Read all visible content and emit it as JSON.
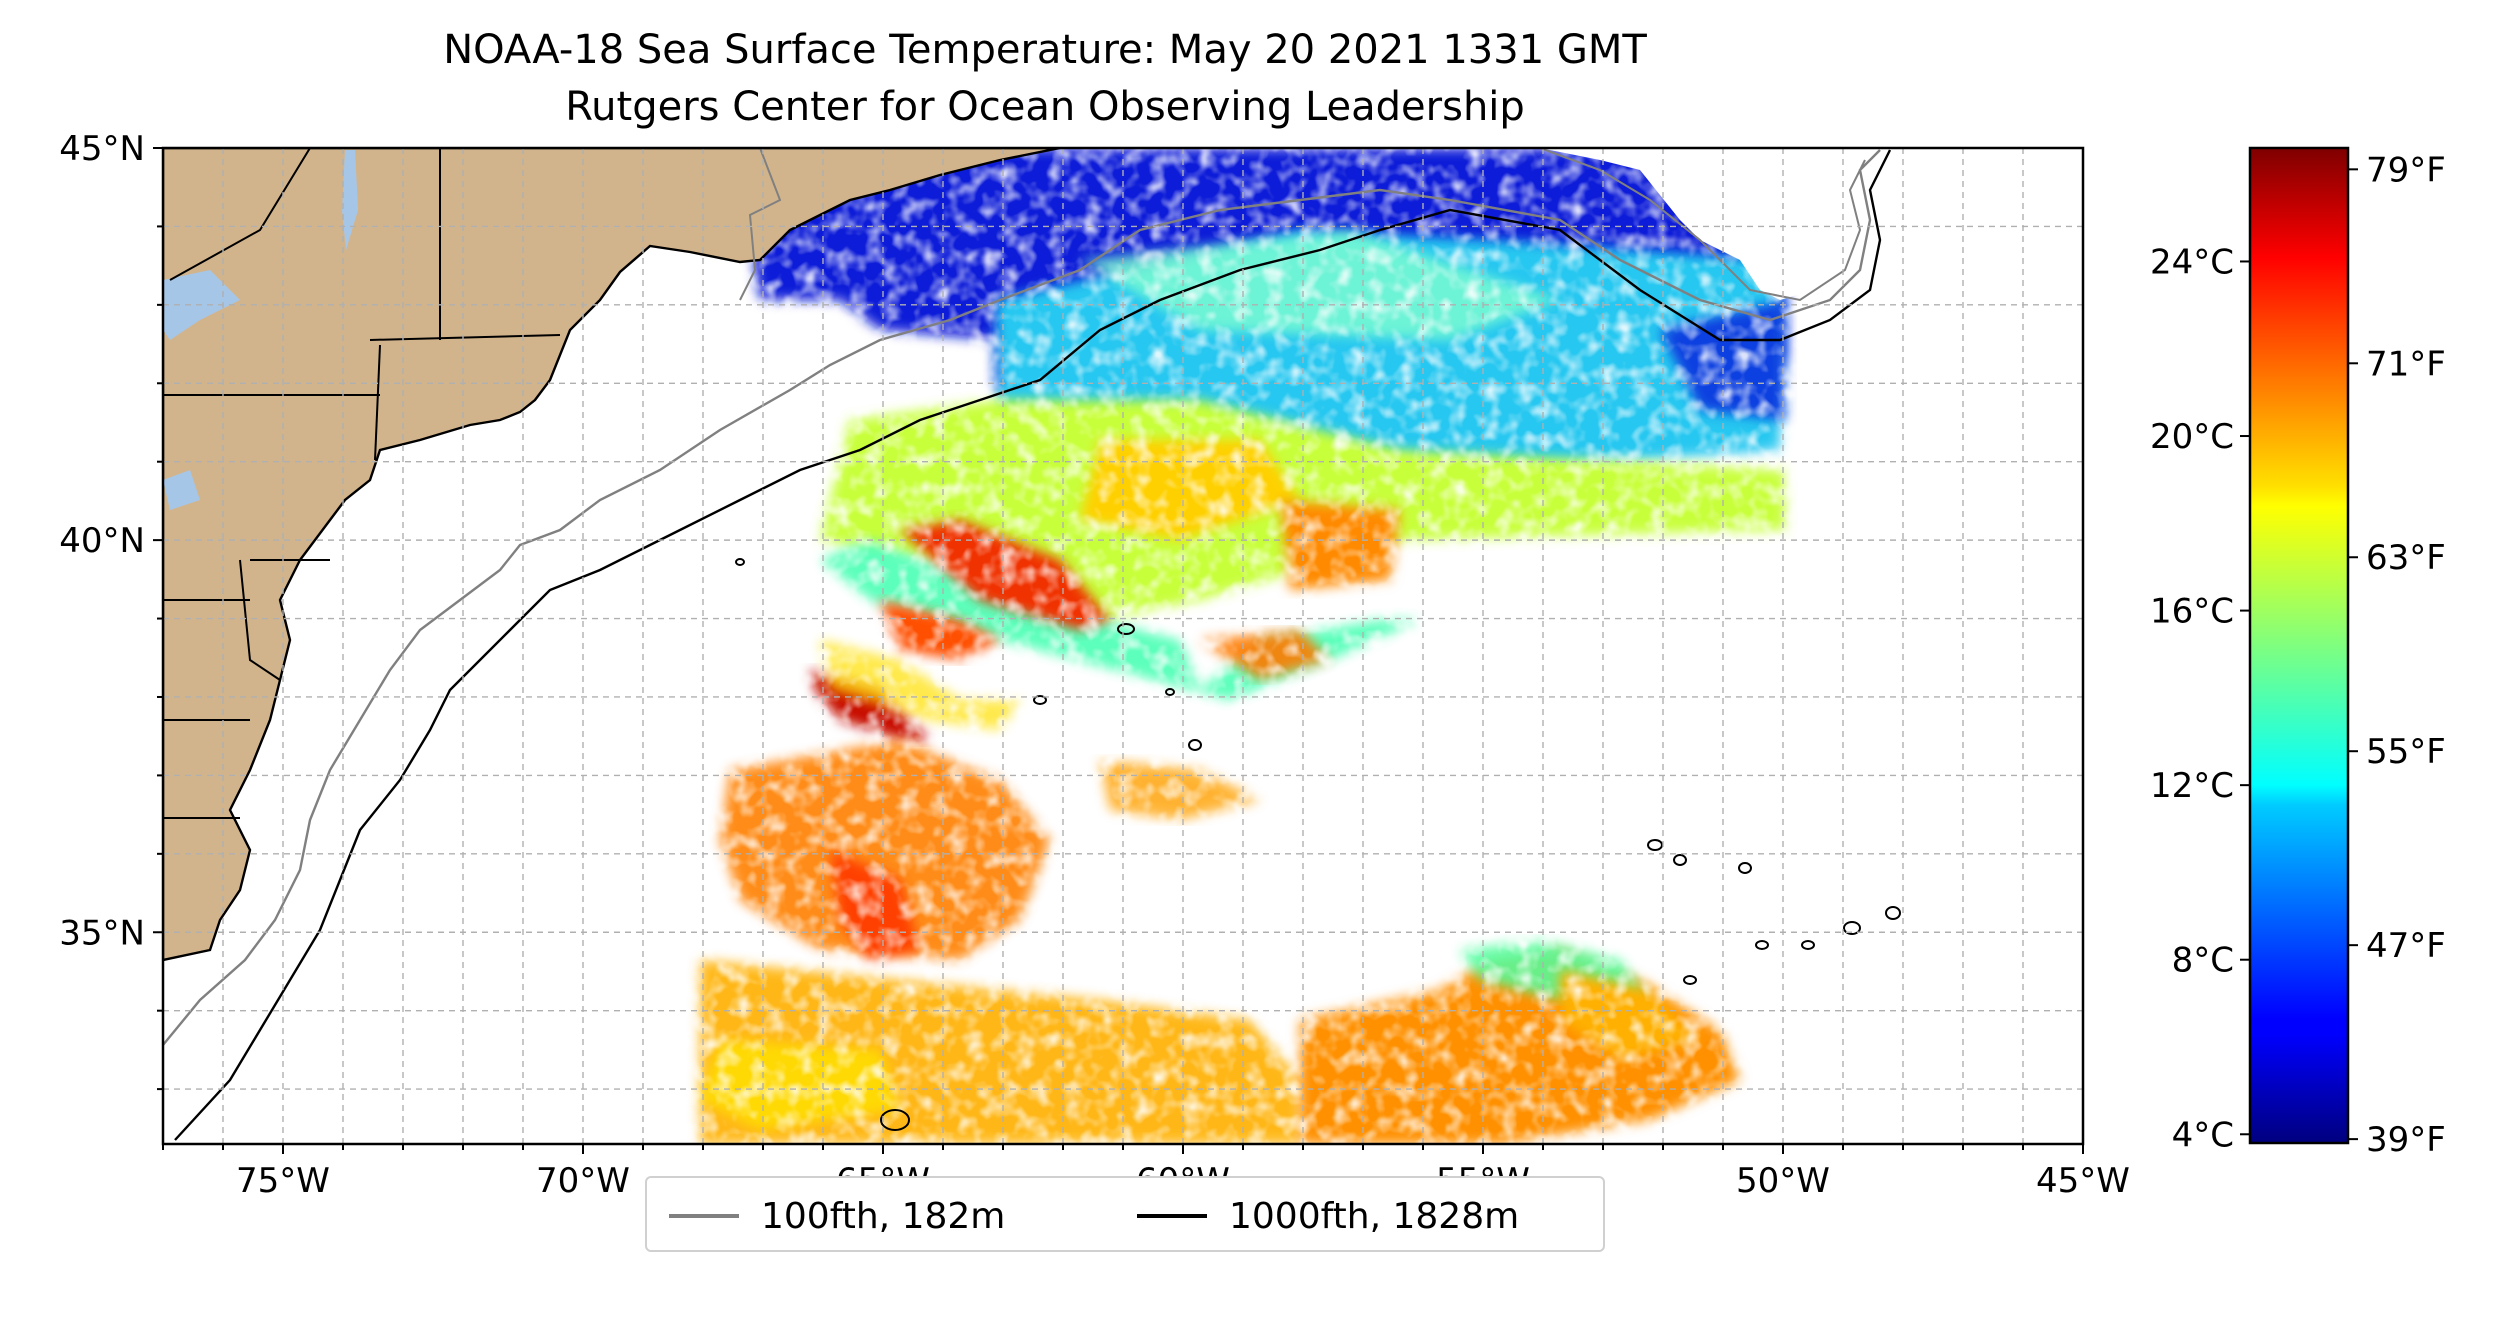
{
  "title_line1": "NOAA-18 Sea Surface Temperature: May 20 2021 1331 GMT",
  "title_line2": "Rutgers Center for Ocean Observing Leadership",
  "map": {
    "lon_range": [
      -77,
      -45
    ],
    "lat_range": [
      32.3,
      45
    ],
    "x_ticks": [
      {
        "lon": -75,
        "label": "75°W"
      },
      {
        "lon": -70,
        "label": "70°W"
      },
      {
        "lon": -65,
        "label": "65°W"
      },
      {
        "lon": -60,
        "label": "60°W"
      },
      {
        "lon": -55,
        "label": "55°W"
      },
      {
        "lon": -50,
        "label": "50°W"
      },
      {
        "lon": -45,
        "label": "45°W"
      }
    ],
    "y_ticks": [
      {
        "lat": 45,
        "label": "45°N"
      },
      {
        "lat": 40,
        "label": "40°N"
      },
      {
        "lat": 35,
        "label": "35°N"
      }
    ],
    "gridlines": true,
    "grid_step_deg": 1,
    "land_color": "#d2b48c",
    "water_body_color": "#a6c6e8"
  },
  "colorbar": {
    "colormap": "jet",
    "celsius_range": [
      3.8,
      26.6
    ],
    "celsius_ticks": [
      {
        "value": 4,
        "label": "4°C"
      },
      {
        "value": 8,
        "label": "8°C"
      },
      {
        "value": 12,
        "label": "12°C"
      },
      {
        "value": 16,
        "label": "16°C"
      },
      {
        "value": 20,
        "label": "20°C"
      },
      {
        "value": 24,
        "label": "24°C"
      }
    ],
    "fahrenheit_ticks": [
      {
        "value": 39,
        "label": "39°F"
      },
      {
        "value": 47,
        "label": "47°F"
      },
      {
        "value": 55,
        "label": "55°F"
      },
      {
        "value": 63,
        "label": "63°F"
      },
      {
        "value": 71,
        "label": "71°F"
      },
      {
        "value": 79,
        "label": "79°F"
      }
    ]
  },
  "legend": [
    {
      "label": "100fth, 182m",
      "color": "#808080"
    },
    {
      "label": "1000fth, 1828m",
      "color": "#000000"
    }
  ]
}
